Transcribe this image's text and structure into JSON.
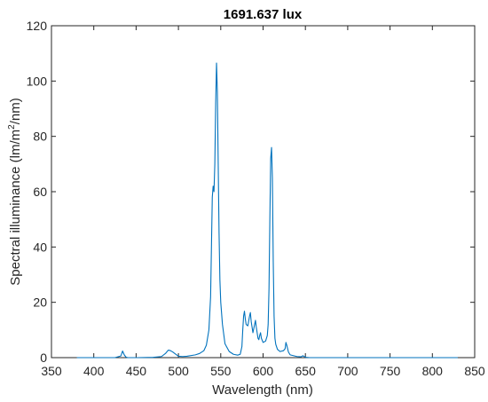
{
  "chart_data": {
    "type": "line",
    "title": "1691.637 lux",
    "xlabel": "Wavelength (nm)",
    "ylabel_main": "Spectral illuminance (lm/m",
    "ylabel_sup": "2",
    "ylabel_tail": "/nm)",
    "xlim": [
      350,
      850
    ],
    "ylim": [
      0,
      120
    ],
    "xticks": [
      "350",
      "400",
      "450",
      "500",
      "550",
      "600",
      "650",
      "700",
      "750",
      "800",
      "850"
    ],
    "yticks": [
      "0",
      "20",
      "40",
      "60",
      "80",
      "100",
      "120"
    ],
    "grid": false,
    "series": [
      {
        "color": "#0072bd",
        "x": [
          380,
          425,
          432,
          434,
          436,
          438,
          440,
          446,
          452,
          470,
          480,
          485,
          488,
          490,
          493,
          497,
          500,
          505,
          510,
          520,
          525,
          530,
          533,
          536,
          538,
          539,
          540,
          541,
          542,
          543,
          544,
          545,
          546,
          547,
          548,
          549,
          550,
          552,
          555,
          560,
          565,
          570,
          573,
          575,
          576,
          577,
          578,
          579,
          580,
          582,
          584,
          585,
          586,
          587,
          588,
          590,
          591,
          592,
          593,
          594,
          595,
          596,
          597,
          598,
          600,
          603,
          605,
          606,
          607,
          608,
          609,
          610,
          611,
          612,
          613,
          614,
          615,
          617,
          620,
          624,
          626,
          627,
          628,
          629,
          630,
          632,
          640,
          645,
          647,
          649,
          651,
          655,
          660,
          700,
          750,
          800,
          830
        ],
        "y": [
          0,
          0,
          0.6,
          2.4,
          1.0,
          0.2,
          0,
          0,
          0,
          0.1,
          0.4,
          1.6,
          2.7,
          2.6,
          2.1,
          1.2,
          0.5,
          0.4,
          0.5,
          1.0,
          1.5,
          2.5,
          4.5,
          10,
          22,
          40,
          58,
          62,
          60,
          70,
          92,
          106.5,
          96,
          70,
          45,
          28,
          20,
          12,
          5,
          2.2,
          1.2,
          0.9,
          1.2,
          4,
          10,
          15,
          16.8,
          14,
          12,
          11.5,
          15,
          16.3,
          13,
          11,
          9,
          12,
          13.5,
          11,
          9,
          7,
          6.5,
          8,
          9,
          7,
          5.5,
          6,
          8,
          12,
          25,
          50,
          72,
          76,
          65,
          35,
          15,
          7,
          4.8,
          3,
          2.2,
          2.5,
          3.2,
          5.5,
          4.5,
          3.2,
          2,
          1,
          0.4,
          0.3,
          0.7,
          0.3,
          0.1,
          0,
          0,
          0,
          0,
          0,
          0
        ]
      }
    ]
  }
}
